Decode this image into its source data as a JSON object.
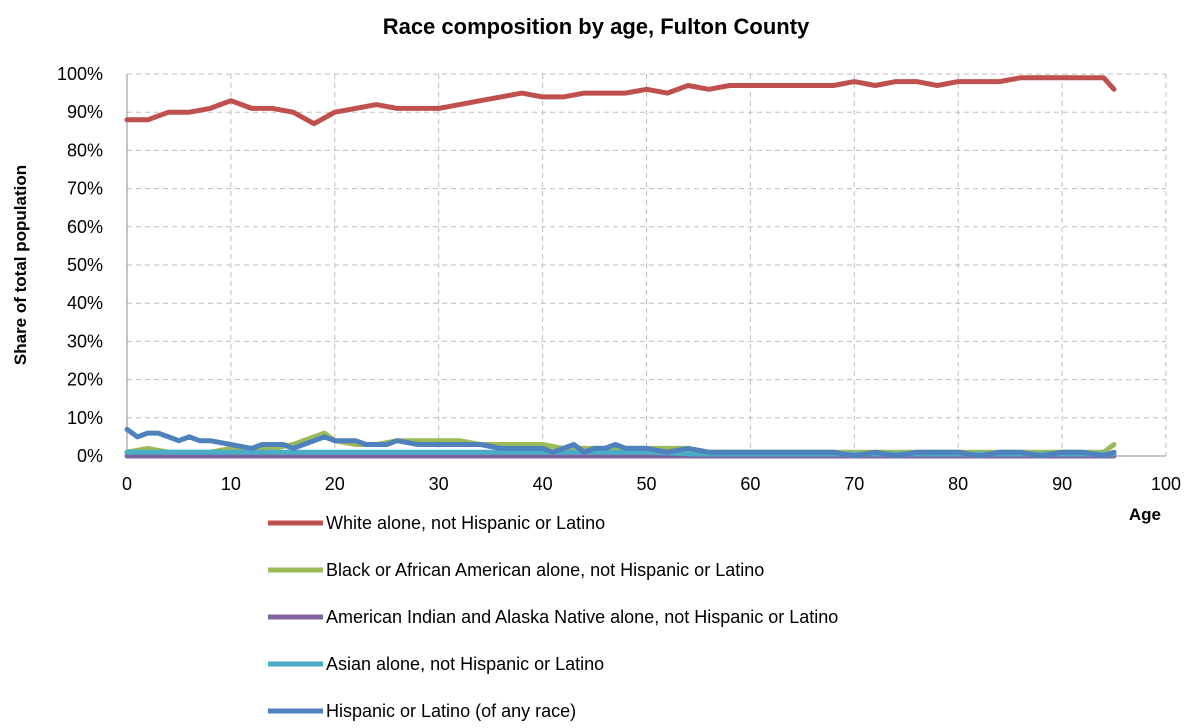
{
  "chart_data": {
    "type": "line",
    "title": "Race composition by age, Fulton County",
    "xlabel": "Age",
    "ylabel": "Share of total population",
    "xlim": [
      0,
      100
    ],
    "ylim": [
      0,
      100
    ],
    "x_ticks": [
      "0",
      "10",
      "20",
      "30",
      "40",
      "50",
      "60",
      "70",
      "80",
      "90",
      "100"
    ],
    "y_ticks": [
      "0%",
      "10%",
      "20%",
      "30%",
      "40%",
      "50%",
      "60%",
      "70%",
      "80%",
      "90%",
      "100%"
    ],
    "grid": true,
    "legend_position": "bottom",
    "series": [
      {
        "name": "White alone, not Hispanic or Latino",
        "color": "#C0504D",
        "x": [
          0,
          2,
          4,
          6,
          8,
          10,
          12,
          14,
          16,
          18,
          20,
          22,
          24,
          26,
          28,
          30,
          32,
          34,
          36,
          38,
          40,
          42,
          44,
          46,
          48,
          50,
          52,
          54,
          56,
          58,
          60,
          62,
          64,
          66,
          68,
          70,
          72,
          74,
          76,
          78,
          80,
          82,
          84,
          86,
          88,
          90,
          92,
          94,
          95
        ],
        "values": [
          88,
          88,
          90,
          90,
          91,
          93,
          91,
          91,
          90,
          87,
          90,
          91,
          92,
          91,
          91,
          91,
          92,
          93,
          94,
          95,
          94,
          94,
          95,
          95,
          95,
          96,
          95,
          97,
          96,
          97,
          97,
          97,
          97,
          97,
          97,
          98,
          97,
          98,
          98,
          97,
          98,
          98,
          98,
          99,
          99,
          99,
          99,
          99,
          96
        ]
      },
      {
        "name": "Black or African American alone, not Hispanic or Latino",
        "color": "#9BBB59",
        "x": [
          0,
          2,
          4,
          6,
          8,
          10,
          12,
          14,
          16,
          18,
          19,
          20,
          22,
          24,
          26,
          28,
          30,
          32,
          34,
          36,
          38,
          40,
          42,
          44,
          46,
          48,
          50,
          52,
          54,
          56,
          58,
          60,
          62,
          64,
          66,
          68,
          70,
          72,
          74,
          76,
          78,
          80,
          82,
          84,
          86,
          88,
          90,
          92,
          94,
          95
        ],
        "values": [
          1,
          2,
          1,
          1,
          1,
          2,
          2,
          2,
          3,
          5,
          6,
          4,
          3,
          3,
          4,
          4,
          4,
          4,
          3,
          3,
          3,
          3,
          2,
          2,
          2,
          2,
          2,
          2,
          2,
          1,
          1,
          1,
          1,
          1,
          1,
          1,
          1,
          1,
          1,
          1,
          1,
          1,
          1,
          1,
          1,
          1,
          1,
          1,
          1,
          3
        ]
      },
      {
        "name": "American Indian and Alaska Native alone, not Hispanic or Latino",
        "color": "#8064A2",
        "x": [
          0,
          10,
          20,
          30,
          40,
          50,
          60,
          70,
          80,
          90,
          95
        ],
        "values": [
          0,
          0,
          0,
          0,
          0,
          0,
          0,
          0,
          0,
          0,
          0
        ]
      },
      {
        "name": "Asian alone, not Hispanic or Latino",
        "color": "#4BACC6",
        "x": [
          0,
          5,
          10,
          15,
          20,
          25,
          30,
          35,
          40,
          45,
          50,
          55,
          60,
          65,
          70,
          75,
          80,
          85,
          90,
          95
        ],
        "values": [
          1,
          1,
          1,
          1,
          1,
          1,
          1,
          1,
          1,
          1,
          1,
          0.5,
          0.5,
          0.5,
          0.5,
          0.5,
          0.5,
          0.5,
          0.5,
          0.5
        ]
      },
      {
        "name": "Hispanic or Latino (of any race)",
        "color": "#4F81BD",
        "x": [
          0,
          1,
          2,
          3,
          4,
          5,
          6,
          7,
          8,
          10,
          12,
          13,
          14,
          15,
          16,
          17,
          18,
          19,
          20,
          21,
          22,
          23,
          24,
          25,
          26,
          28,
          30,
          32,
          34,
          36,
          38,
          40,
          41,
          42,
          43,
          44,
          45,
          46,
          47,
          48,
          50,
          52,
          54,
          56,
          58,
          60,
          62,
          64,
          66,
          68,
          70,
          72,
          74,
          76,
          78,
          80,
          82,
          84,
          86,
          88,
          90,
          92,
          94,
          95
        ],
        "values": [
          7,
          5,
          6,
          6,
          5,
          4,
          5,
          4,
          4,
          3,
          2,
          3,
          3,
          3,
          2,
          3,
          4,
          5,
          4,
          4,
          4,
          3,
          3,
          3,
          4,
          3,
          3,
          3,
          3,
          2,
          2,
          2,
          1,
          2,
          3,
          1,
          2,
          2,
          3,
          2,
          2,
          1,
          2,
          1,
          1,
          1,
          1,
          1,
          1,
          1,
          0,
          1,
          0,
          1,
          1,
          1,
          0,
          1,
          1,
          0,
          1,
          1,
          0,
          1
        ]
      }
    ]
  }
}
